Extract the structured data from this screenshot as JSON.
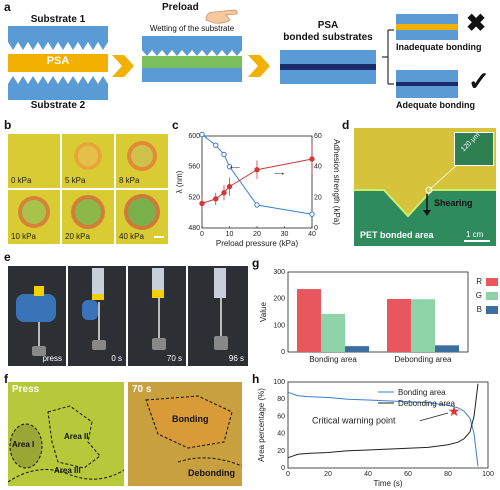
{
  "panel_a": {
    "label": "a",
    "substrate1": "Substrate 1",
    "psa": "PSA",
    "substrate2": "Substrate 2",
    "preload": "Preload",
    "wetting": "Wetting of the substrate",
    "psa_bonded": "PSA\nbonded substrates",
    "psa_bonded_l1": "PSA",
    "psa_bonded_l2": "bonded substrates",
    "inadequate": "Inadequate bonding",
    "adequate": "Adequate bonding"
  },
  "panel_b": {
    "label": "b",
    "kpa": [
      "0 kPa",
      "5 kPa",
      "8 kPa",
      "10 kPa",
      "20 kPa",
      "40 kPa"
    ]
  },
  "panel_d": {
    "label": "d",
    "scale_inset": "120 μm",
    "shearing": "Shearing",
    "pet": "PET bonded area",
    "scale": "1 cm"
  },
  "panel_e": {
    "label": "e",
    "frames": [
      "press",
      "0 s",
      "70 s",
      "96 s"
    ]
  },
  "panel_f": {
    "label": "f",
    "press": "Press",
    "area1": "Area I",
    "area2": "Area II",
    "area3": "Area III",
    "t70": "70 s",
    "bonding": "Bonding",
    "debonding": "Debonding"
  },
  "chart_data": [
    {
      "id": "c",
      "type": "line",
      "xlabel": "Preload pressure (kPa)",
      "ylabel_left": "λ (nm)",
      "ylabel_right": "Adhesion strength (kPa)",
      "xlim": [
        0,
        40
      ],
      "ylim_left": [
        480,
        600
      ],
      "ylim_right": [
        0,
        60
      ],
      "xticks": [
        0,
        10,
        20,
        30,
        40
      ],
      "yticks_left": [
        480,
        520,
        560,
        600
      ],
      "yticks_right": [
        0,
        20,
        40,
        60
      ],
      "series": [
        {
          "axis": "left",
          "color": "#3a7fd0",
          "x": [
            0,
            5,
            8,
            10,
            20,
            40
          ],
          "y": [
            602,
            588,
            576,
            560,
            510,
            498
          ],
          "err": [
            2,
            2,
            2,
            3,
            2,
            2
          ]
        },
        {
          "axis": "right",
          "color": "#d03a3a",
          "x": [
            0,
            5,
            8,
            10,
            20,
            40
          ],
          "y": [
            16,
            19,
            23,
            27,
            38,
            45
          ],
          "err": [
            4,
            4,
            5,
            6,
            6,
            10
          ]
        }
      ]
    },
    {
      "id": "g",
      "type": "bar",
      "ylabel": "Value",
      "categories": [
        "Bonding area",
        "Debonding area"
      ],
      "ylim": [
        0,
        300
      ],
      "yticks": [
        0,
        100,
        200,
        300
      ],
      "series": [
        {
          "name": "R",
          "color": "#e8575e",
          "values": [
            236,
            199
          ]
        },
        {
          "name": "G",
          "color": "#8fd3a8",
          "values": [
            143,
            198
          ]
        },
        {
          "name": "B",
          "color": "#3a6fa0",
          "values": [
            22,
            25
          ]
        }
      ]
    },
    {
      "id": "h",
      "type": "line",
      "xlabel": "Time (s)",
      "ylabel": "Area percentage (%)",
      "xlim": [
        0,
        100
      ],
      "ylim": [
        0,
        100
      ],
      "xticks": [
        0,
        20,
        40,
        60,
        80,
        100
      ],
      "yticks": [
        0,
        20,
        40,
        60,
        80,
        100
      ],
      "annotation": "Critical warning point",
      "critical_point": [
        83,
        66
      ],
      "series": [
        {
          "name": "Bonding area",
          "color": "#3a7fd0",
          "x": [
            0,
            5,
            10,
            20,
            30,
            40,
            50,
            60,
            70,
            80,
            85,
            88,
            91,
            93,
            95
          ],
          "y": [
            88,
            84,
            83,
            82,
            80,
            79,
            78,
            77,
            76,
            73,
            70,
            66,
            58,
            40,
            2
          ]
        },
        {
          "name": "Debonding area",
          "color": "#222222",
          "x": [
            0,
            5,
            10,
            20,
            30,
            40,
            50,
            60,
            70,
            80,
            85,
            88,
            91,
            93,
            95
          ],
          "y": [
            12,
            16,
            17,
            18,
            20,
            21,
            22,
            23,
            24,
            27,
            30,
            34,
            42,
            60,
            98
          ]
        }
      ]
    }
  ]
}
